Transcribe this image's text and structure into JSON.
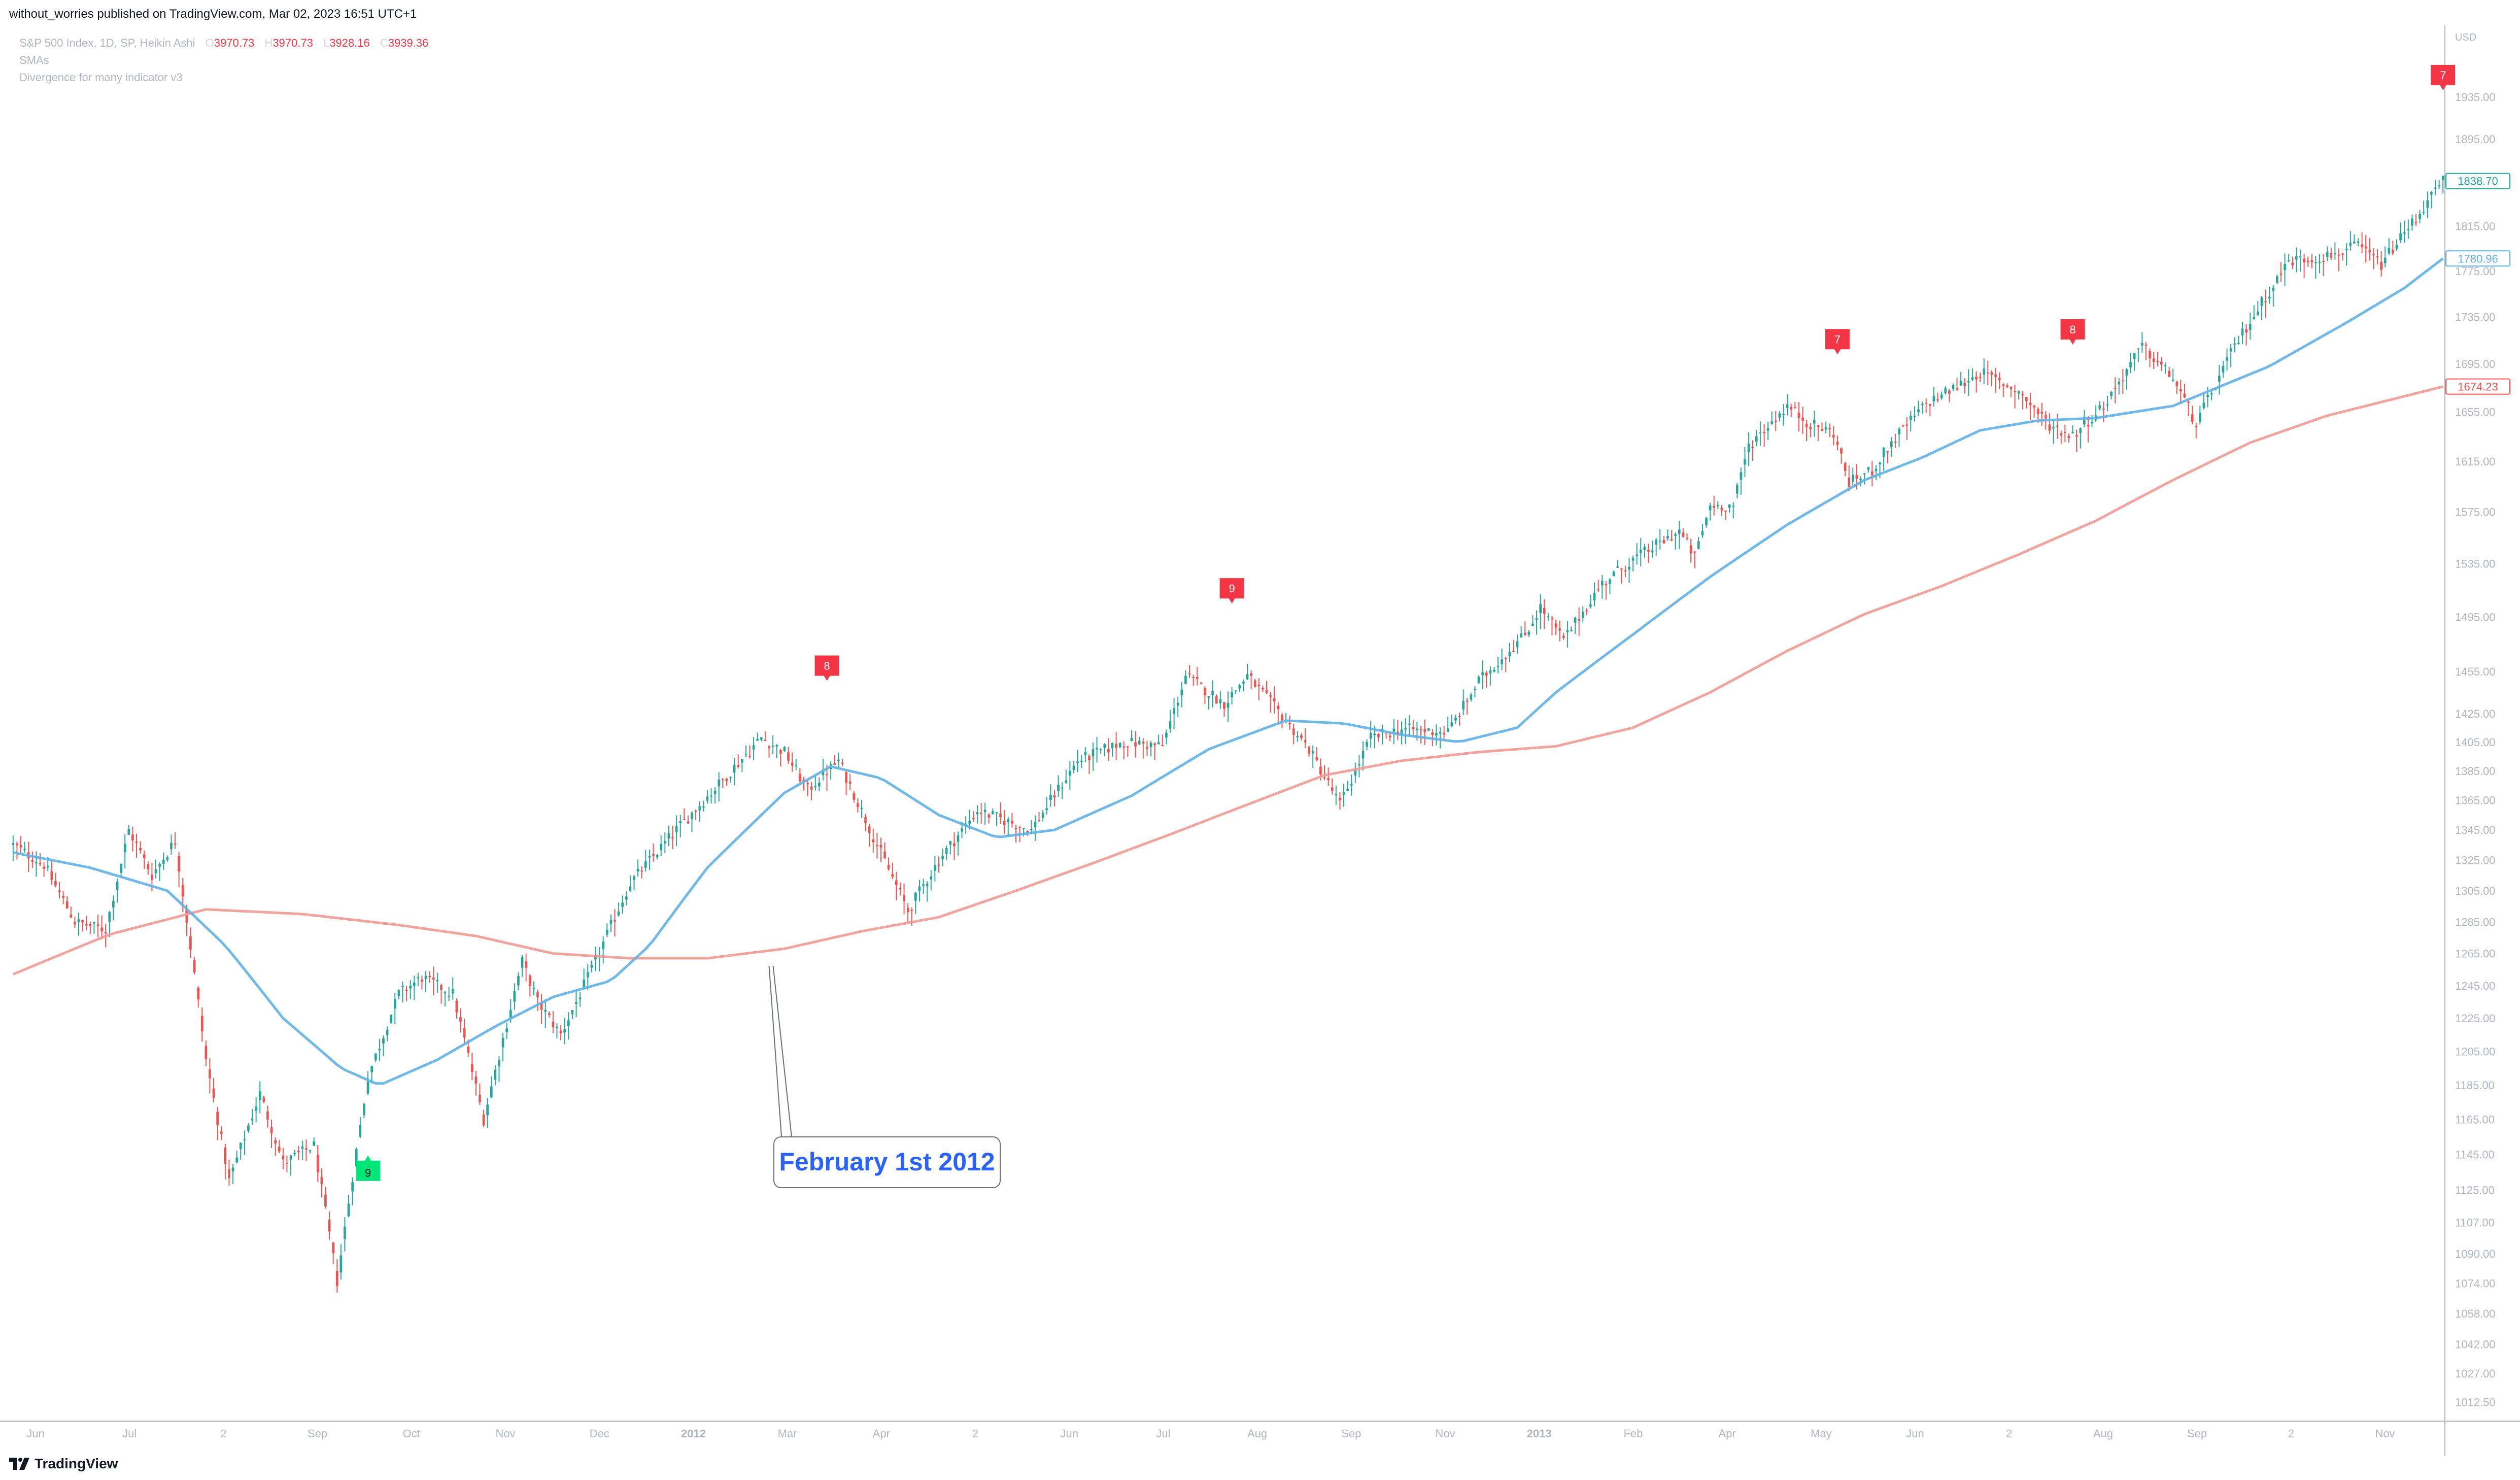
{
  "header": {
    "published": "without_worries published on TradingView.com, Mar 02, 2023 16:51 UTC+1"
  },
  "legend": {
    "symbol": "S&P 500 Index, 1D, SP, Heikin Ashi",
    "ohlc": [
      {
        "label": "O",
        "value": "3970.73"
      },
      {
        "label": "H",
        "value": "3970.73"
      },
      {
        "label": "L",
        "value": "3928.16"
      },
      {
        "label": "C",
        "value": "3939.36"
      }
    ],
    "indicator1": "SMAs",
    "indicator2": "Divergence for many indicator v3"
  },
  "footer": {
    "brand": "TradingView"
  },
  "colors": {
    "up": "#26a69a",
    "down": "#ef5350",
    "sma_fast": "#5fb0e6",
    "sma_slow": "#f09a94",
    "sell_marker": "#f23645",
    "buy_marker": "#00e676",
    "annotation_text": "#2962ff"
  },
  "chart_data": {
    "type": "candlestick",
    "title": "",
    "currency": "USD",
    "y_scale": "log",
    "ylim": [
      1003,
      2000
    ],
    "y_ticks": [
      "1935.00",
      "1895.00",
      "1855.00",
      "1815.00",
      "1775.00",
      "1735.00",
      "1695.00",
      "1655.00",
      "1615.00",
      "1575.00",
      "1535.00",
      "1495.00",
      "1455.00",
      "1425.00",
      "1405.00",
      "1385.00",
      "1365.00",
      "1345.00",
      "1325.00",
      "1305.00",
      "1285.00",
      "1265.00",
      "1245.00",
      "1225.00",
      "1205.00",
      "1185.00",
      "1165.00",
      "1145.00",
      "1125.00",
      "1107.00",
      "1090.00",
      "1074.00",
      "1058.00",
      "1042.00",
      "1027.00",
      "1012.50"
    ],
    "price_labels": [
      {
        "value": "1838.70",
        "color": "#26a69a"
      },
      {
        "value": "1780.96",
        "color": "#5fb0e6"
      },
      {
        "value": "1674.23",
        "color": "#ef5350"
      }
    ],
    "x_ticks": [
      "Jun",
      "Jul",
      "2",
      "Sep",
      "Oct",
      "Nov",
      "Dec",
      "2012",
      "Mar",
      "Apr",
      "2",
      "Jun",
      "Jul",
      "Aug",
      "Sep",
      "Nov",
      "2013",
      "Feb",
      "Apr",
      "May",
      "Jun",
      "2",
      "Aug",
      "Sep",
      "2",
      "Nov"
    ],
    "x_tick_bold": [
      "2012",
      "2013"
    ],
    "price_path": [
      [
        0,
        1335
      ],
      [
        8,
        1322
      ],
      [
        16,
        1285
      ],
      [
        24,
        1280
      ],
      [
        30,
        1345
      ],
      [
        36,
        1315
      ],
      [
        42,
        1338
      ],
      [
        50,
        1200
      ],
      [
        56,
        1130
      ],
      [
        64,
        1180
      ],
      [
        70,
        1140
      ],
      [
        78,
        1150
      ],
      [
        84,
        1075
      ],
      [
        92,
        1190
      ],
      [
        100,
        1240
      ],
      [
        106,
        1250
      ],
      [
        114,
        1240
      ],
      [
        122,
        1165
      ],
      [
        132,
        1260
      ],
      [
        136,
        1235
      ],
      [
        142,
        1215
      ],
      [
        150,
        1255
      ],
      [
        160,
        1310
      ],
      [
        172,
        1345
      ],
      [
        182,
        1373
      ],
      [
        194,
        1408
      ],
      [
        200,
        1398
      ],
      [
        206,
        1372
      ],
      [
        214,
        1392
      ],
      [
        224,
        1335
      ],
      [
        232,
        1292
      ],
      [
        240,
        1325
      ],
      [
        250,
        1358
      ],
      [
        264,
        1345
      ],
      [
        276,
        1392
      ],
      [
        288,
        1405
      ],
      [
        298,
        1402
      ],
      [
        304,
        1452
      ],
      [
        314,
        1432
      ],
      [
        320,
        1452
      ],
      [
        330,
        1420
      ],
      [
        336,
        1400
      ],
      [
        344,
        1362
      ],
      [
        352,
        1408
      ],
      [
        360,
        1414
      ],
      [
        372,
        1412
      ],
      [
        380,
        1448
      ],
      [
        392,
        1482
      ],
      [
        396,
        1502
      ],
      [
        402,
        1478
      ],
      [
        412,
        1520
      ],
      [
        420,
        1538
      ],
      [
        432,
        1560
      ],
      [
        436,
        1540
      ],
      [
        440,
        1580
      ],
      [
        446,
        1580
      ],
      [
        450,
        1628
      ],
      [
        460,
        1660
      ],
      [
        466,
        1645
      ],
      [
        472,
        1638
      ],
      [
        476,
        1598
      ],
      [
        482,
        1608
      ],
      [
        488,
        1634
      ],
      [
        496,
        1662
      ],
      [
        504,
        1676
      ],
      [
        510,
        1688
      ],
      [
        520,
        1672
      ],
      [
        528,
        1644
      ],
      [
        534,
        1636
      ],
      [
        542,
        1660
      ],
      [
        552,
        1710
      ],
      [
        560,
        1683
      ],
      [
        566,
        1645
      ],
      [
        576,
        1710
      ],
      [
        590,
        1784
      ],
      [
        600,
        1788
      ],
      [
        608,
        1797
      ],
      [
        614,
        1781
      ],
      [
        622,
        1818
      ],
      [
        630,
        1856
      ]
    ],
    "candle_count": 631,
    "sma_fast": [
      [
        0,
        1330
      ],
      [
        20,
        1320
      ],
      [
        40,
        1305
      ],
      [
        55,
        1270
      ],
      [
        70,
        1225
      ],
      [
        85,
        1195
      ],
      [
        95,
        1185
      ],
      [
        110,
        1200
      ],
      [
        125,
        1220
      ],
      [
        140,
        1238
      ],
      [
        155,
        1248
      ],
      [
        165,
        1270
      ],
      [
        180,
        1320
      ],
      [
        200,
        1370
      ],
      [
        212,
        1388
      ],
      [
        225,
        1380
      ],
      [
        240,
        1355
      ],
      [
        255,
        1340
      ],
      [
        270,
        1345
      ],
      [
        290,
        1368
      ],
      [
        310,
        1400
      ],
      [
        330,
        1420
      ],
      [
        345,
        1418
      ],
      [
        360,
        1410
      ],
      [
        375,
        1405
      ],
      [
        390,
        1415
      ],
      [
        400,
        1440
      ],
      [
        420,
        1482
      ],
      [
        440,
        1525
      ],
      [
        460,
        1565
      ],
      [
        480,
        1600
      ],
      [
        495,
        1618
      ],
      [
        510,
        1640
      ],
      [
        525,
        1648
      ],
      [
        540,
        1650
      ],
      [
        560,
        1660
      ],
      [
        585,
        1693
      ],
      [
        605,
        1730
      ],
      [
        620,
        1760
      ],
      [
        630,
        1786
      ]
    ],
    "sma_slow": [
      [
        0,
        1252
      ],
      [
        25,
        1277
      ],
      [
        50,
        1293
      ],
      [
        75,
        1290
      ],
      [
        100,
        1283
      ],
      [
        120,
        1276
      ],
      [
        140,
        1265
      ],
      [
        160,
        1262
      ],
      [
        180,
        1262
      ],
      [
        200,
        1268
      ],
      [
        220,
        1279
      ],
      [
        240,
        1288
      ],
      [
        260,
        1305
      ],
      [
        280,
        1323
      ],
      [
        300,
        1342
      ],
      [
        320,
        1362
      ],
      [
        340,
        1382
      ],
      [
        360,
        1392
      ],
      [
        380,
        1398
      ],
      [
        400,
        1402
      ],
      [
        420,
        1415
      ],
      [
        440,
        1440
      ],
      [
        460,
        1470
      ],
      [
        480,
        1497
      ],
      [
        500,
        1518
      ],
      [
        520,
        1542
      ],
      [
        540,
        1568
      ],
      [
        560,
        1600
      ],
      [
        580,
        1630
      ],
      [
        600,
        1652
      ],
      [
        630,
        1676
      ]
    ],
    "signals": [
      {
        "type": "sell",
        "label": "8",
        "at": 211
      },
      {
        "type": "sell",
        "label": "9",
        "at": 316
      },
      {
        "type": "sell",
        "label": "7",
        "at": 473
      },
      {
        "type": "sell",
        "label": "8",
        "at": 534
      },
      {
        "type": "sell",
        "label": "7",
        "at": 630
      },
      {
        "type": "buy",
        "label": "9",
        "at": 92
      }
    ],
    "annotation": {
      "text": "February 1st 2012"
    }
  }
}
